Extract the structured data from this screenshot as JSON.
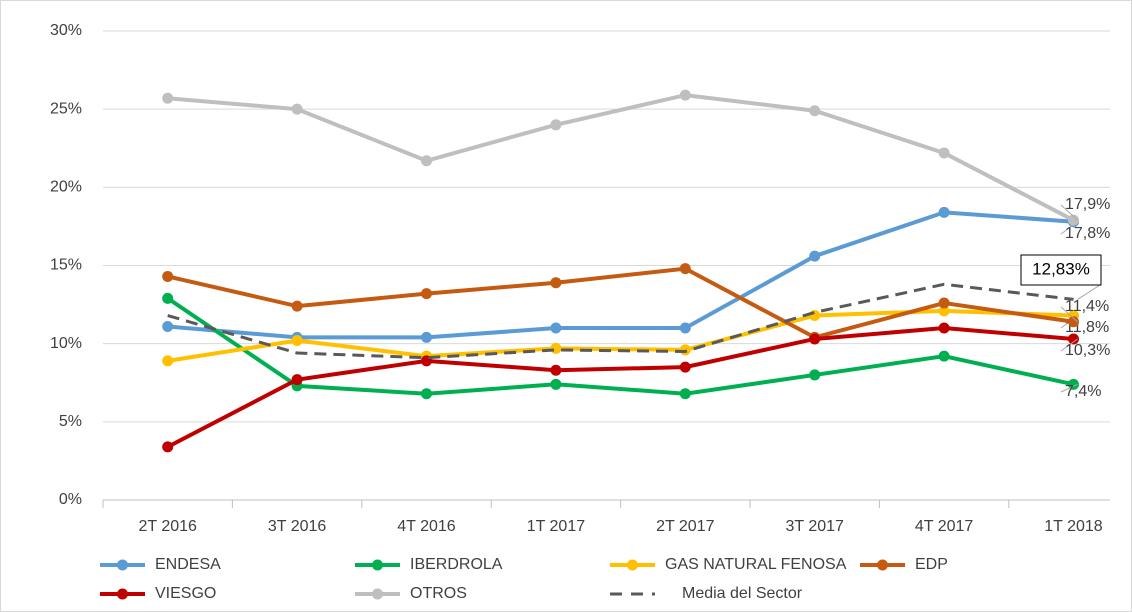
{
  "chart_data": {
    "type": "line",
    "categories": [
      "2T 2016",
      "3T 2016",
      "4T 2016",
      "1T 2017",
      "2T 2017",
      "3T 2017",
      "4T 2017",
      "1T 2018"
    ],
    "ylim": [
      0,
      30
    ],
    "yticks": [
      {
        "value": 0,
        "label": "0%"
      },
      {
        "value": 5,
        "label": "5%"
      },
      {
        "value": 10,
        "label": "10%"
      },
      {
        "value": 15,
        "label": "15%"
      },
      {
        "value": 20,
        "label": "20%"
      },
      {
        "value": 25,
        "label": "25%"
      },
      {
        "value": 30,
        "label": "30%"
      }
    ],
    "grid": true,
    "legend": "bottom",
    "series": [
      {
        "name": "ENDESA",
        "color": "#5b9bd5",
        "values": [
          11.1,
          10.4,
          10.4,
          11.0,
          11.0,
          15.6,
          18.4,
          17.8
        ],
        "value_labels": [
          null,
          null,
          null,
          null,
          null,
          null,
          null,
          "17,8%"
        ]
      },
      {
        "name": "IBERDROLA",
        "color": "#00b050",
        "values": [
          12.9,
          7.3,
          6.8,
          7.4,
          6.8,
          8.0,
          9.2,
          7.4
        ],
        "value_labels": [
          null,
          null,
          null,
          null,
          null,
          null,
          null,
          "7,4%"
        ]
      },
      {
        "name": "GAS NATURAL FENOSA",
        "color": "#ffc000",
        "values": [
          8.9,
          10.2,
          9.2,
          9.7,
          9.6,
          11.8,
          12.1,
          11.8
        ],
        "value_labels": [
          null,
          null,
          null,
          null,
          null,
          null,
          null,
          "11,8%"
        ]
      },
      {
        "name": "EDP",
        "color": "#c55a11",
        "values": [
          14.3,
          12.4,
          13.2,
          13.9,
          14.8,
          10.4,
          12.6,
          11.4
        ],
        "value_labels": [
          null,
          null,
          null,
          null,
          null,
          null,
          null,
          "11,4%"
        ]
      },
      {
        "name": "VIESGO",
        "color": "#c00000",
        "values": [
          3.4,
          7.7,
          8.9,
          8.3,
          8.5,
          10.3,
          11.0,
          10.3
        ],
        "value_labels": [
          null,
          null,
          null,
          null,
          null,
          null,
          null,
          "10,3%"
        ]
      },
      {
        "name": "OTROS",
        "color": "#bfbfbf",
        "values": [
          25.7,
          25.0,
          21.7,
          24.0,
          25.9,
          24.9,
          22.2,
          17.9
        ],
        "value_labels": [
          null,
          null,
          null,
          null,
          null,
          null,
          null,
          "17,9%"
        ]
      },
      {
        "name": "Media del Sector",
        "color": "#595959",
        "dashed": true,
        "values": [
          11.8,
          9.4,
          9.1,
          9.6,
          9.5,
          12.0,
          13.8,
          12.83
        ],
        "value_labels": [
          null,
          null,
          null,
          null,
          null,
          null,
          null,
          "12,83%"
        ]
      }
    ]
  }
}
